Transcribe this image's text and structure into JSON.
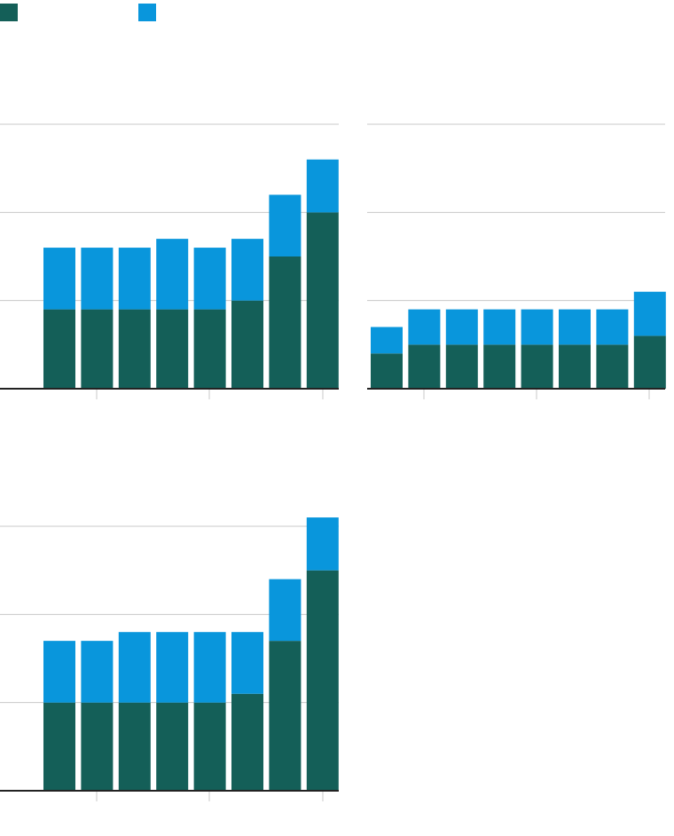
{
  "colors": {
    "bottom": "#145f58",
    "top": "#0996dc",
    "grid": "#c8c8c8",
    "axis": "#222222"
  },
  "legend": [
    {
      "name": "",
      "color": "#145f58"
    },
    {
      "name": "",
      "color": "#0996dc"
    }
  ],
  "chart_data": [
    {
      "type": "bar",
      "stacked": true,
      "grid": true,
      "ylim": [
        0,
        3
      ],
      "yticks": [
        1,
        2,
        3
      ],
      "categories": [
        "",
        "",
        "",
        "",
        "",
        "",
        "",
        ""
      ],
      "series": [
        {
          "values": [
            0.9,
            0.9,
            0.9,
            0.9,
            0.9,
            1.0,
            1.5,
            2.0
          ]
        },
        {
          "values": [
            0.7,
            0.7,
            0.7,
            0.8,
            0.7,
            0.7,
            0.7,
            0.6
          ]
        }
      ]
    },
    {
      "type": "bar",
      "stacked": true,
      "grid": true,
      "ylim": [
        0,
        3
      ],
      "yticks": [
        1,
        2,
        3
      ],
      "categories": [
        "",
        "",
        "",
        "",
        "",
        "",
        "",
        ""
      ],
      "series": [
        {
          "values": [
            0.4,
            0.5,
            0.5,
            0.5,
            0.5,
            0.5,
            0.5,
            0.6
          ]
        },
        {
          "values": [
            0.3,
            0.4,
            0.4,
            0.4,
            0.4,
            0.4,
            0.4,
            0.5
          ]
        }
      ]
    },
    {
      "type": "bar",
      "stacked": true,
      "grid": true,
      "ylim": [
        0,
        3
      ],
      "yticks": [
        1,
        2,
        3
      ],
      "categories": [
        "",
        "",
        "",
        "",
        "",
        "",
        "",
        ""
      ],
      "series": [
        {
          "values": [
            1.0,
            1.0,
            1.0,
            1.0,
            1.0,
            1.1,
            1.7,
            2.5
          ]
        },
        {
          "values": [
            0.7,
            0.7,
            0.8,
            0.8,
            0.8,
            0.7,
            0.7,
            0.6
          ]
        }
      ]
    }
  ]
}
